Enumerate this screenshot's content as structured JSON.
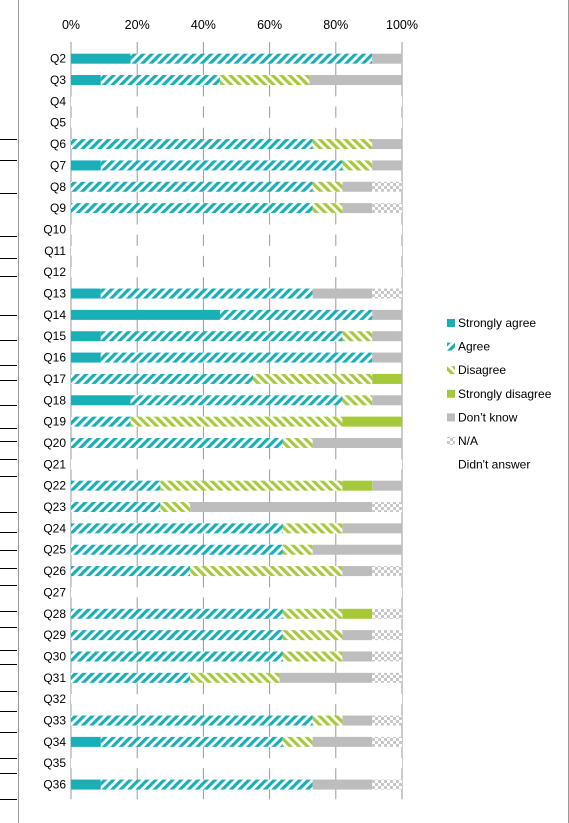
{
  "chart_data": {
    "type": "bar",
    "orientation": "horizontal",
    "stacked": "percent",
    "xlim": [
      0,
      100
    ],
    "xticks": [
      "0%",
      "20%",
      "40%",
      "60%",
      "80%",
      "100%"
    ],
    "grid": true,
    "legend_position": "right",
    "categories": [
      "Q2",
      "Q3",
      "Q4",
      "Q5",
      "Q6",
      "Q7",
      "Q8",
      "Q9",
      "Q10",
      "Q11",
      "Q12",
      "Q13",
      "Q14",
      "Q15",
      "Q16",
      "Q17",
      "Q18",
      "Q19",
      "Q20",
      "Q21",
      "Q22",
      "Q23",
      "Q24",
      "Q25",
      "Q26",
      "Q27",
      "Q28",
      "Q29",
      "Q30",
      "Q31",
      "Q32",
      "Q33",
      "Q34",
      "Q35",
      "Q36"
    ],
    "series": [
      {
        "name": "Strongly agree",
        "color": "#1aaeb7",
        "pattern": "solid",
        "values": [
          18,
          9,
          0,
          0,
          0,
          9,
          0,
          0,
          0,
          0,
          0,
          9,
          45,
          9,
          9,
          0,
          18,
          0,
          0,
          0,
          0,
          0,
          0,
          0,
          0,
          0,
          0,
          0,
          0,
          0,
          0,
          0,
          9,
          0,
          9
        ]
      },
      {
        "name": "Agree",
        "color": "#1aaeb7",
        "pattern": "hatch",
        "values": [
          73,
          36,
          0,
          0,
          73,
          73,
          73,
          73,
          0,
          0,
          0,
          64,
          46,
          73,
          82,
          55,
          64,
          18,
          64,
          0,
          27,
          27,
          64,
          64,
          36,
          0,
          64,
          64,
          64,
          36,
          0,
          73,
          55,
          0,
          64
        ]
      },
      {
        "name": "Disagree",
        "color": "#a7c93d",
        "pattern": "hatch",
        "values": [
          0,
          27,
          0,
          0,
          18,
          9,
          9,
          9,
          0,
          0,
          0,
          0,
          0,
          9,
          0,
          36,
          9,
          64,
          9,
          0,
          55,
          9,
          18,
          9,
          46,
          0,
          18,
          18,
          18,
          27,
          0,
          9,
          9,
          0,
          0
        ]
      },
      {
        "name": "Strongly disagree",
        "color": "#a6c93a",
        "pattern": "solid",
        "values": [
          0,
          0,
          0,
          0,
          0,
          0,
          0,
          0,
          0,
          0,
          0,
          0,
          0,
          0,
          0,
          9,
          0,
          18,
          0,
          0,
          9,
          0,
          0,
          0,
          0,
          0,
          9,
          0,
          0,
          0,
          0,
          0,
          0,
          0,
          0
        ]
      },
      {
        "name": "Don’t know",
        "color": "#bdbdbd",
        "pattern": "solid",
        "values": [
          9,
          28,
          0,
          0,
          9,
          9,
          9,
          9,
          0,
          0,
          0,
          18,
          9,
          9,
          9,
          0,
          9,
          0,
          27,
          0,
          9,
          55,
          18,
          27,
          9,
          0,
          0,
          9,
          9,
          28,
          0,
          9,
          18,
          0,
          18
        ]
      },
      {
        "name": "N/A",
        "color": "#c8c8c8",
        "pattern": "check",
        "values": [
          0,
          0,
          0,
          0,
          0,
          0,
          9,
          9,
          0,
          0,
          0,
          9,
          0,
          0,
          0,
          0,
          0,
          0,
          0,
          0,
          0,
          9,
          0,
          0,
          9,
          0,
          9,
          9,
          9,
          9,
          0,
          9,
          9,
          0,
          9
        ]
      },
      {
        "name": "Didn't answer",
        "color": "#ffffff",
        "pattern": "none",
        "values": [
          0,
          0,
          100,
          100,
          0,
          0,
          0,
          0,
          100,
          100,
          100,
          0,
          0,
          0,
          0,
          0,
          0,
          0,
          0,
          100,
          0,
          0,
          0,
          0,
          0,
          100,
          0,
          0,
          0,
          0,
          100,
          0,
          0,
          100,
          0
        ]
      }
    ]
  }
}
